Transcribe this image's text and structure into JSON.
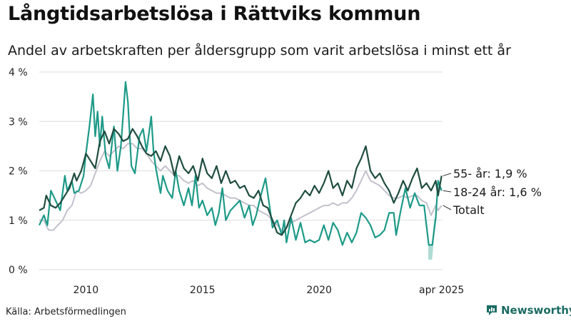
{
  "header": {
    "title": "Långtidsarbetslösa i Rättviks kommun",
    "subtitle": "Andel av arbetskraften per åldersgrupp som varit arbetslösa i minst ett år"
  },
  "footer": {
    "source": "Källa: Arbetsförmedlingen",
    "brand": "Newsworthy"
  },
  "colors": {
    "series_55": "#1f4d40",
    "series_1824": "#1e9a88",
    "series_total": "#c3c0cc",
    "range_band": "#a5d8d0",
    "grid": "#dedede",
    "brand": "#1a6b63"
  },
  "icons": {
    "brand_logo": "bar-chart-icon"
  },
  "chart_data": {
    "type": "line",
    "x_unit": "year",
    "xlim": [
      2008.0,
      2025.29
    ],
    "ylim": [
      0,
      4
    ],
    "y_ticks": [
      {
        "value": 0,
        "label": "0 %"
      },
      {
        "value": 1,
        "label": "1 %"
      },
      {
        "value": 2,
        "label": "2 %"
      },
      {
        "value": 3,
        "label": "3 %"
      },
      {
        "value": 4,
        "label": "4 %"
      }
    ],
    "x_ticks": [
      {
        "value": 2010,
        "label": "2010"
      },
      {
        "value": 2015,
        "label": "2015"
      },
      {
        "value": 2020,
        "label": "2020"
      },
      {
        "value": 2025.25,
        "label": "apr 2025"
      }
    ],
    "grid": true,
    "legend": "end-of-line labels",
    "series": [
      {
        "name": "55- år",
        "end_label": "55- år: 1,9 %",
        "color": "#1f4d40",
        "points": [
          [
            2008.0,
            1.2
          ],
          [
            2008.2,
            1.25
          ],
          [
            2008.3,
            1.5
          ],
          [
            2008.5,
            1.3
          ],
          [
            2008.7,
            1.25
          ],
          [
            2008.9,
            1.35
          ],
          [
            2009.1,
            1.5
          ],
          [
            2009.3,
            1.65
          ],
          [
            2009.5,
            1.95
          ],
          [
            2009.6,
            1.8
          ],
          [
            2009.8,
            2.0
          ],
          [
            2010.0,
            2.35
          ],
          [
            2010.2,
            2.2
          ],
          [
            2010.4,
            2.05
          ],
          [
            2010.6,
            2.6
          ],
          [
            2010.8,
            2.8
          ],
          [
            2011.0,
            2.55
          ],
          [
            2011.2,
            2.85
          ],
          [
            2011.4,
            2.75
          ],
          [
            2011.6,
            2.6
          ],
          [
            2011.8,
            2.65
          ],
          [
            2012.0,
            2.85
          ],
          [
            2012.2,
            2.7
          ],
          [
            2012.4,
            2.5
          ],
          [
            2012.6,
            2.35
          ],
          [
            2012.8,
            2.3
          ],
          [
            2013.0,
            2.4
          ],
          [
            2013.2,
            2.2
          ],
          [
            2013.4,
            2.5
          ],
          [
            2013.6,
            2.3
          ],
          [
            2013.8,
            1.9
          ],
          [
            2014.0,
            2.3
          ],
          [
            2014.2,
            2.05
          ],
          [
            2014.4,
            1.95
          ],
          [
            2014.6,
            2.1
          ],
          [
            2014.8,
            1.8
          ],
          [
            2015.0,
            2.25
          ],
          [
            2015.2,
            1.95
          ],
          [
            2015.4,
            1.85
          ],
          [
            2015.6,
            2.1
          ],
          [
            2015.8,
            1.75
          ],
          [
            2016.0,
            2.0
          ],
          [
            2016.2,
            1.75
          ],
          [
            2016.4,
            1.8
          ],
          [
            2016.6,
            1.65
          ],
          [
            2016.8,
            1.7
          ],
          [
            2017.0,
            1.5
          ],
          [
            2017.2,
            1.45
          ],
          [
            2017.4,
            1.6
          ],
          [
            2017.6,
            1.3
          ],
          [
            2017.8,
            1.25
          ],
          [
            2018.0,
            1.0
          ],
          [
            2018.2,
            0.75
          ],
          [
            2018.4,
            0.7
          ],
          [
            2018.6,
            0.85
          ],
          [
            2018.8,
            1.1
          ],
          [
            2019.0,
            1.35
          ],
          [
            2019.2,
            1.45
          ],
          [
            2019.4,
            1.6
          ],
          [
            2019.6,
            1.5
          ],
          [
            2019.8,
            1.7
          ],
          [
            2020.0,
            1.55
          ],
          [
            2020.2,
            1.75
          ],
          [
            2020.4,
            2.0
          ],
          [
            2020.6,
            1.65
          ],
          [
            2020.8,
            1.75
          ],
          [
            2021.0,
            1.5
          ],
          [
            2021.2,
            1.8
          ],
          [
            2021.4,
            1.65
          ],
          [
            2021.6,
            2.05
          ],
          [
            2021.8,
            2.25
          ],
          [
            2022.0,
            2.5
          ],
          [
            2022.2,
            2.0
          ],
          [
            2022.4,
            1.85
          ],
          [
            2022.6,
            1.95
          ],
          [
            2022.8,
            1.75
          ],
          [
            2023.0,
            1.6
          ],
          [
            2023.2,
            1.35
          ],
          [
            2023.4,
            1.55
          ],
          [
            2023.6,
            1.8
          ],
          [
            2023.8,
            1.6
          ],
          [
            2024.0,
            1.85
          ],
          [
            2024.2,
            2.05
          ],
          [
            2024.4,
            1.65
          ],
          [
            2024.6,
            1.75
          ],
          [
            2024.8,
            1.6
          ],
          [
            2025.0,
            1.8
          ],
          [
            2025.1,
            1.5
          ],
          [
            2025.25,
            1.9
          ]
        ]
      },
      {
        "name": "18-24 år",
        "end_label": "18-24 år: 1,6 %",
        "color": "#1e9a88",
        "points": [
          [
            2008.0,
            0.9
          ],
          [
            2008.2,
            1.1
          ],
          [
            2008.35,
            0.9
          ],
          [
            2008.5,
            1.6
          ],
          [
            2008.7,
            1.4
          ],
          [
            2008.9,
            1.2
          ],
          [
            2009.1,
            1.9
          ],
          [
            2009.2,
            1.6
          ],
          [
            2009.4,
            1.8
          ],
          [
            2009.5,
            1.55
          ],
          [
            2009.7,
            1.6
          ],
          [
            2009.9,
            1.9
          ],
          [
            2010.0,
            2.35
          ],
          [
            2010.15,
            2.9
          ],
          [
            2010.3,
            3.55
          ],
          [
            2010.4,
            2.7
          ],
          [
            2010.5,
            3.2
          ],
          [
            2010.6,
            2.5
          ],
          [
            2010.7,
            3.1
          ],
          [
            2010.85,
            2.3
          ],
          [
            2011.0,
            2.05
          ],
          [
            2011.2,
            2.9
          ],
          [
            2011.35,
            2.0
          ],
          [
            2011.5,
            2.5
          ],
          [
            2011.7,
            3.8
          ],
          [
            2011.8,
            3.4
          ],
          [
            2011.95,
            2.1
          ],
          [
            2012.1,
            1.95
          ],
          [
            2012.3,
            2.7
          ],
          [
            2012.45,
            2.85
          ],
          [
            2012.6,
            2.4
          ],
          [
            2012.8,
            3.1
          ],
          [
            2012.9,
            2.4
          ],
          [
            2013.0,
            2.05
          ],
          [
            2013.2,
            1.55
          ],
          [
            2013.3,
            1.9
          ],
          [
            2013.5,
            1.6
          ],
          [
            2013.7,
            1.45
          ],
          [
            2013.85,
            2.0
          ],
          [
            2014.0,
            1.6
          ],
          [
            2014.2,
            1.3
          ],
          [
            2014.4,
            1.65
          ],
          [
            2014.55,
            1.3
          ],
          [
            2014.7,
            1.9
          ],
          [
            2014.85,
            1.25
          ],
          [
            2015.0,
            1.4
          ],
          [
            2015.2,
            1.1
          ],
          [
            2015.4,
            1.25
          ],
          [
            2015.55,
            0.9
          ],
          [
            2015.7,
            1.15
          ],
          [
            2015.85,
            1.65
          ],
          [
            2016.0,
            1.0
          ],
          [
            2016.2,
            1.2
          ],
          [
            2016.4,
            1.3
          ],
          [
            2016.6,
            1.4
          ],
          [
            2016.8,
            1.05
          ],
          [
            2017.0,
            1.3
          ],
          [
            2017.15,
            0.9
          ],
          [
            2017.3,
            1.1
          ],
          [
            2017.5,
            1.5
          ],
          [
            2017.7,
            1.85
          ],
          [
            2017.9,
            1.2
          ],
          [
            2018.0,
            0.85
          ],
          [
            2018.2,
            1.0
          ],
          [
            2018.4,
            0.7
          ],
          [
            2018.5,
            1.0
          ],
          [
            2018.6,
            0.55
          ],
          [
            2018.8,
            1.05
          ],
          [
            2019.0,
            0.6
          ],
          [
            2019.2,
            0.95
          ],
          [
            2019.4,
            0.55
          ],
          [
            2019.6,
            0.6
          ],
          [
            2019.8,
            0.55
          ],
          [
            2020.0,
            0.6
          ],
          [
            2020.2,
            0.9
          ],
          [
            2020.4,
            0.6
          ],
          [
            2020.6,
            0.95
          ],
          [
            2020.8,
            0.8
          ],
          [
            2021.0,
            0.5
          ],
          [
            2021.2,
            0.75
          ],
          [
            2021.4,
            0.55
          ],
          [
            2021.6,
            0.75
          ],
          [
            2021.8,
            1.15
          ],
          [
            2022.0,
            1.05
          ],
          [
            2022.2,
            0.9
          ],
          [
            2022.4,
            0.65
          ],
          [
            2022.6,
            0.7
          ],
          [
            2022.8,
            0.8
          ],
          [
            2023.0,
            1.15
          ],
          [
            2023.2,
            1.15
          ],
          [
            2023.3,
            0.7
          ],
          [
            2023.5,
            1.2
          ],
          [
            2023.7,
            1.65
          ],
          [
            2023.9,
            1.25
          ],
          [
            2024.1,
            1.55
          ],
          [
            2024.3,
            1.3
          ],
          [
            2024.5,
            1.3
          ],
          [
            2024.7,
            0.5
          ],
          [
            2024.85,
            0.5
          ],
          [
            2025.0,
            1.05
          ],
          [
            2025.1,
            1.8
          ],
          [
            2025.25,
            1.6
          ]
        ]
      },
      {
        "name": "Totalt",
        "end_label": "Totalt",
        "color": "#c3c0cc",
        "points": [
          [
            2008.0,
            1.0
          ],
          [
            2008.2,
            1.0
          ],
          [
            2008.4,
            0.8
          ],
          [
            2008.6,
            0.8
          ],
          [
            2008.8,
            0.9
          ],
          [
            2009.0,
            1.0
          ],
          [
            2009.2,
            1.2
          ],
          [
            2009.4,
            1.3
          ],
          [
            2009.6,
            1.6
          ],
          [
            2009.8,
            1.55
          ],
          [
            2010.0,
            1.6
          ],
          [
            2010.2,
            1.7
          ],
          [
            2010.4,
            1.95
          ],
          [
            2010.6,
            2.2
          ],
          [
            2010.8,
            2.4
          ],
          [
            2011.0,
            2.3
          ],
          [
            2011.2,
            2.4
          ],
          [
            2011.4,
            2.5
          ],
          [
            2011.6,
            2.45
          ],
          [
            2011.8,
            2.55
          ],
          [
            2012.0,
            2.55
          ],
          [
            2012.2,
            2.45
          ],
          [
            2012.4,
            2.45
          ],
          [
            2012.6,
            2.35
          ],
          [
            2012.8,
            2.2
          ],
          [
            2013.0,
            2.1
          ],
          [
            2013.2,
            2.0
          ],
          [
            2013.4,
            2.1
          ],
          [
            2013.6,
            2.0
          ],
          [
            2013.8,
            1.9
          ],
          [
            2014.0,
            1.9
          ],
          [
            2014.2,
            1.8
          ],
          [
            2014.4,
            1.75
          ],
          [
            2014.6,
            1.8
          ],
          [
            2014.8,
            1.7
          ],
          [
            2015.0,
            1.75
          ],
          [
            2015.2,
            1.65
          ],
          [
            2015.4,
            1.6
          ],
          [
            2015.6,
            1.55
          ],
          [
            2015.8,
            1.55
          ],
          [
            2016.0,
            1.5
          ],
          [
            2016.2,
            1.45
          ],
          [
            2016.4,
            1.45
          ],
          [
            2016.6,
            1.4
          ],
          [
            2016.8,
            1.35
          ],
          [
            2017.0,
            1.3
          ],
          [
            2017.2,
            1.3
          ],
          [
            2017.4,
            1.2
          ],
          [
            2017.6,
            1.15
          ],
          [
            2017.8,
            1.1
          ],
          [
            2018.0,
            1.0
          ],
          [
            2018.2,
            0.9
          ],
          [
            2018.4,
            0.8
          ],
          [
            2018.6,
            0.85
          ],
          [
            2018.8,
            0.95
          ],
          [
            2019.0,
            1.0
          ],
          [
            2019.2,
            1.05
          ],
          [
            2019.4,
            1.1
          ],
          [
            2019.6,
            1.15
          ],
          [
            2019.8,
            1.2
          ],
          [
            2020.0,
            1.25
          ],
          [
            2020.2,
            1.3
          ],
          [
            2020.4,
            1.3
          ],
          [
            2020.6,
            1.35
          ],
          [
            2020.8,
            1.3
          ],
          [
            2021.0,
            1.35
          ],
          [
            2021.2,
            1.35
          ],
          [
            2021.4,
            1.45
          ],
          [
            2021.6,
            1.6
          ],
          [
            2021.8,
            1.8
          ],
          [
            2022.0,
            2.0
          ],
          [
            2022.2,
            1.8
          ],
          [
            2022.4,
            1.75
          ],
          [
            2022.6,
            1.7
          ],
          [
            2022.8,
            1.6
          ],
          [
            2023.0,
            1.5
          ],
          [
            2023.2,
            1.45
          ],
          [
            2023.4,
            1.45
          ],
          [
            2023.6,
            1.5
          ],
          [
            2023.8,
            1.45
          ],
          [
            2024.0,
            1.5
          ],
          [
            2024.2,
            1.5
          ],
          [
            2024.4,
            1.4
          ],
          [
            2024.6,
            1.35
          ],
          [
            2024.8,
            1.1
          ],
          [
            2025.0,
            1.3
          ],
          [
            2025.1,
            1.2
          ],
          [
            2025.25,
            1.3
          ]
        ]
      }
    ],
    "range_band": [
      [
        2024.68,
        0.2,
        0.5
      ],
      [
        2024.76,
        0.2,
        0.5
      ],
      [
        2024.84,
        0.2,
        0.5
      ],
      [
        2024.92,
        0.6,
        1.0
      ],
      [
        2025.0,
        0.95,
        1.1
      ]
    ]
  }
}
